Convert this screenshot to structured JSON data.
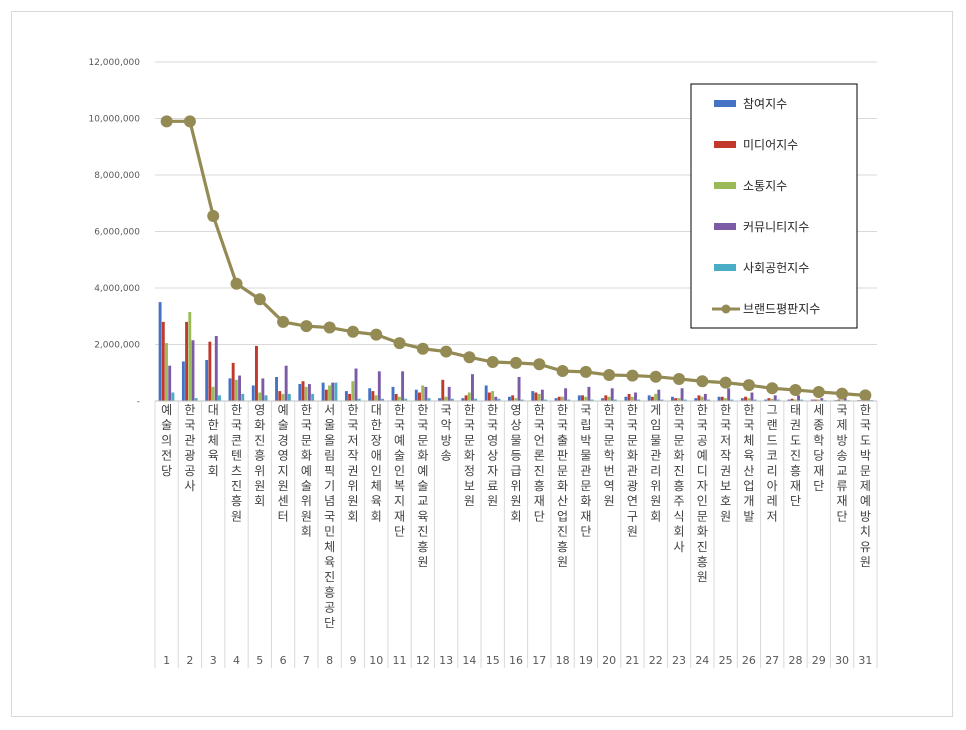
{
  "chart_data": {
    "type": "bar",
    "title": "",
    "xlabel": "",
    "ylabel": "",
    "ylim": [
      0,
      12000000
    ],
    "yticks": [
      0,
      2000000,
      4000000,
      6000000,
      8000000,
      10000000,
      12000000
    ],
    "ytick_labels": [
      "-",
      "2,000,000",
      "4,000,000",
      "6,000,000",
      "8,000,000",
      "10,000,000",
      "12,000,000"
    ],
    "grid": true,
    "legend_position": "top-right",
    "ranks": [
      "1",
      "2",
      "3",
      "4",
      "5",
      "6",
      "7",
      "8",
      "9",
      "10",
      "11",
      "12",
      "13",
      "14",
      "15",
      "16",
      "17",
      "18",
      "19",
      "20",
      "21",
      "22",
      "23",
      "24",
      "25",
      "26",
      "27",
      "28",
      "29",
      "30",
      "31"
    ],
    "categories": [
      "예술의전당",
      "한국관광공사",
      "대한체육회",
      "한국콘텐츠진흥원",
      "영화진흥위원회",
      "예술경영지원센터",
      "한국문화예술위원회",
      "서울올림픽기념국민체육진흥공단",
      "한국저작권위원회",
      "대한장애인체육회",
      "한국예술인복지재단",
      "한국문화예술교육진흥원",
      "국악방송",
      "한국문화정보원",
      "한국영상자료원",
      "영상물등급위원회",
      "한국언론진흥재단",
      "한국출판문화산업진흥원",
      "국립박물관문화재단",
      "한국문학번역원",
      "한국문화관광연구원",
      "게임물관리위원회",
      "한국문화진흥주식회사",
      "한국공예디자인문화진흥원",
      "한국저작권보호원",
      "한국체육산업개발",
      "그랜드코리아레저",
      "태권도진흥재단",
      "세종학당재단",
      "국제방송교류재단",
      "한국도박문제예방치유원"
    ],
    "series": [
      {
        "name": "참여지수",
        "type": "bar",
        "color": "#4472C4",
        "values": [
          3500000,
          1400000,
          1450000,
          800000,
          550000,
          850000,
          600000,
          650000,
          350000,
          450000,
          500000,
          400000,
          100000,
          100000,
          550000,
          150000,
          350000,
          100000,
          200000,
          100000,
          150000,
          200000,
          150000,
          100000,
          150000,
          100000,
          50000,
          50000,
          50000,
          30000,
          30000
        ]
      },
      {
        "name": "미디어지수",
        "type": "bar",
        "color": "#C0392B",
        "values": [
          2800000,
          2800000,
          2100000,
          1350000,
          1950000,
          350000,
          700000,
          400000,
          250000,
          350000,
          250000,
          300000,
          750000,
          200000,
          300000,
          200000,
          300000,
          150000,
          200000,
          200000,
          250000,
          150000,
          100000,
          200000,
          150000,
          150000,
          100000,
          80000,
          50000,
          50000,
          30000
        ]
      },
      {
        "name": "소통지수",
        "type": "bar",
        "color": "#9BBB59",
        "values": [
          2050000,
          3150000,
          500000,
          750000,
          300000,
          250000,
          500000,
          550000,
          700000,
          200000,
          150000,
          550000,
          150000,
          300000,
          350000,
          100000,
          250000,
          150000,
          150000,
          150000,
          150000,
          250000,
          100000,
          150000,
          100000,
          100000,
          80000,
          50000,
          50000,
          30000,
          30000
        ]
      },
      {
        "name": "커뮤니티지수",
        "type": "bar",
        "color": "#7B5AA6",
        "values": [
          1250000,
          2150000,
          2300000,
          900000,
          800000,
          1250000,
          600000,
          650000,
          1150000,
          1050000,
          1050000,
          500000,
          500000,
          950000,
          150000,
          850000,
          400000,
          450000,
          500000,
          450000,
          300000,
          400000,
          450000,
          250000,
          450000,
          300000,
          200000,
          200000,
          100000,
          100000,
          80000
        ]
      },
      {
        "name": "사회공헌지수",
        "type": "bar",
        "color": "#4BACC6",
        "values": [
          300000,
          100000,
          200000,
          250000,
          200000,
          250000,
          250000,
          650000,
          80000,
          80000,
          80000,
          100000,
          80000,
          80000,
          80000,
          50000,
          50000,
          50000,
          50000,
          50000,
          50000,
          50000,
          50000,
          50000,
          50000,
          50000,
          50000,
          50000,
          30000,
          30000,
          30000
        ]
      },
      {
        "name": "브랜드평판지수",
        "type": "line",
        "color": "#948A54",
        "values": [
          9900000,
          9900000,
          6550000,
          4150000,
          3600000,
          2800000,
          2650000,
          2600000,
          2450000,
          2350000,
          2050000,
          1850000,
          1750000,
          1550000,
          1380000,
          1350000,
          1300000,
          1060000,
          1030000,
          920000,
          900000,
          860000,
          780000,
          700000,
          650000,
          560000,
          450000,
          390000,
          320000,
          260000,
          200000
        ]
      }
    ]
  }
}
